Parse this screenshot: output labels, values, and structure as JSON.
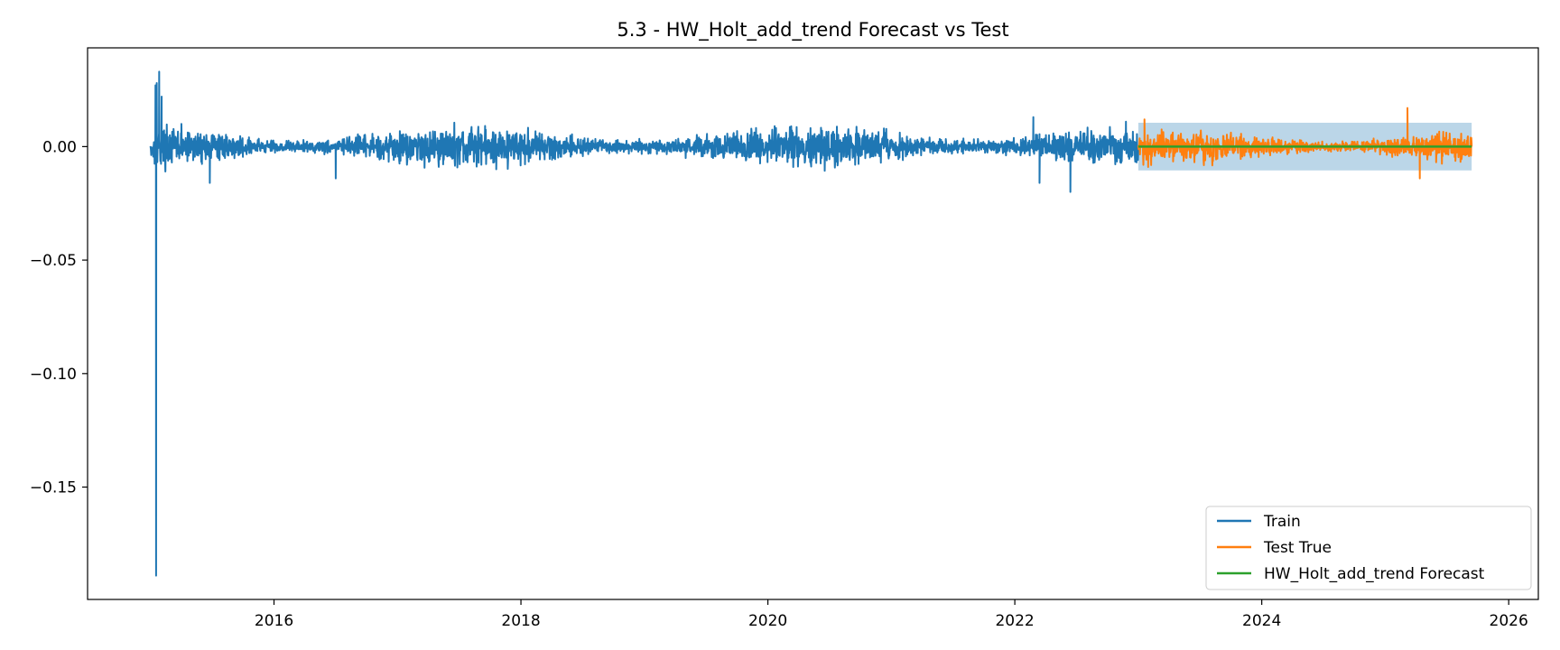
{
  "chart_data": {
    "type": "line",
    "title": "5.3 - HW_Holt_add_trend Forecast vs Test",
    "xlabel": "",
    "ylabel": "",
    "x_unit": "year",
    "xlim": [
      2014.49,
      2026.24
    ],
    "ylim": [
      -0.1995,
      0.0435
    ],
    "xticks": [
      2016,
      2018,
      2020,
      2022,
      2024,
      2026
    ],
    "xtick_labels": [
      "2016",
      "2018",
      "2020",
      "2022",
      "2024",
      "2026"
    ],
    "yticks": [
      0.0,
      -0.05,
      -0.1,
      -0.15
    ],
    "ytick_labels": [
      "0.00",
      "−0.05",
      "−0.10",
      "−0.15"
    ],
    "grid": false,
    "legend_position": "lower-right",
    "series": [
      {
        "name": "Train",
        "color": "#1f77b4",
        "x_start": 2015.0,
        "x_end": 2023.0,
        "noise_amplitude": 0.006,
        "points": [
          [
            2015.0,
            0.0
          ],
          [
            2015.03,
            0.0
          ],
          [
            2015.04,
            0.027
          ],
          [
            2015.045,
            -0.189
          ],
          [
            2015.05,
            0.028
          ],
          [
            2015.07,
            0.033
          ],
          [
            2015.09,
            0.022
          ],
          [
            2015.12,
            -0.011
          ],
          [
            2015.25,
            0.01
          ],
          [
            2015.48,
            -0.016
          ],
          [
            2016.5,
            -0.014
          ],
          [
            2017.8,
            -0.01
          ],
          [
            2022.15,
            0.013
          ],
          [
            2022.2,
            -0.016
          ],
          [
            2022.45,
            -0.02
          ],
          [
            2022.9,
            0.011
          ],
          [
            2023.0,
            0.0
          ]
        ]
      },
      {
        "name": "Test True",
        "color": "#ff7f0e",
        "x_start": 2023.0,
        "x_end": 2025.7,
        "noise_amplitude": 0.005,
        "points": [
          [
            2023.0,
            0.0
          ],
          [
            2023.05,
            0.012
          ],
          [
            2023.08,
            -0.009
          ],
          [
            2025.18,
            0.017
          ],
          [
            2025.28,
            -0.014
          ],
          [
            2025.7,
            0.0
          ]
        ]
      },
      {
        "name": "HW_Holt_add_trend Forecast",
        "color": "#2ca02c",
        "points": [
          [
            2023.0,
            0.0
          ],
          [
            2025.7,
            0.0
          ]
        ]
      }
    ],
    "confidence_band": {
      "color": "#1f77b4",
      "x": [
        2023.0,
        2025.7
      ],
      "lower": -0.0105,
      "upper": 0.0105
    }
  }
}
